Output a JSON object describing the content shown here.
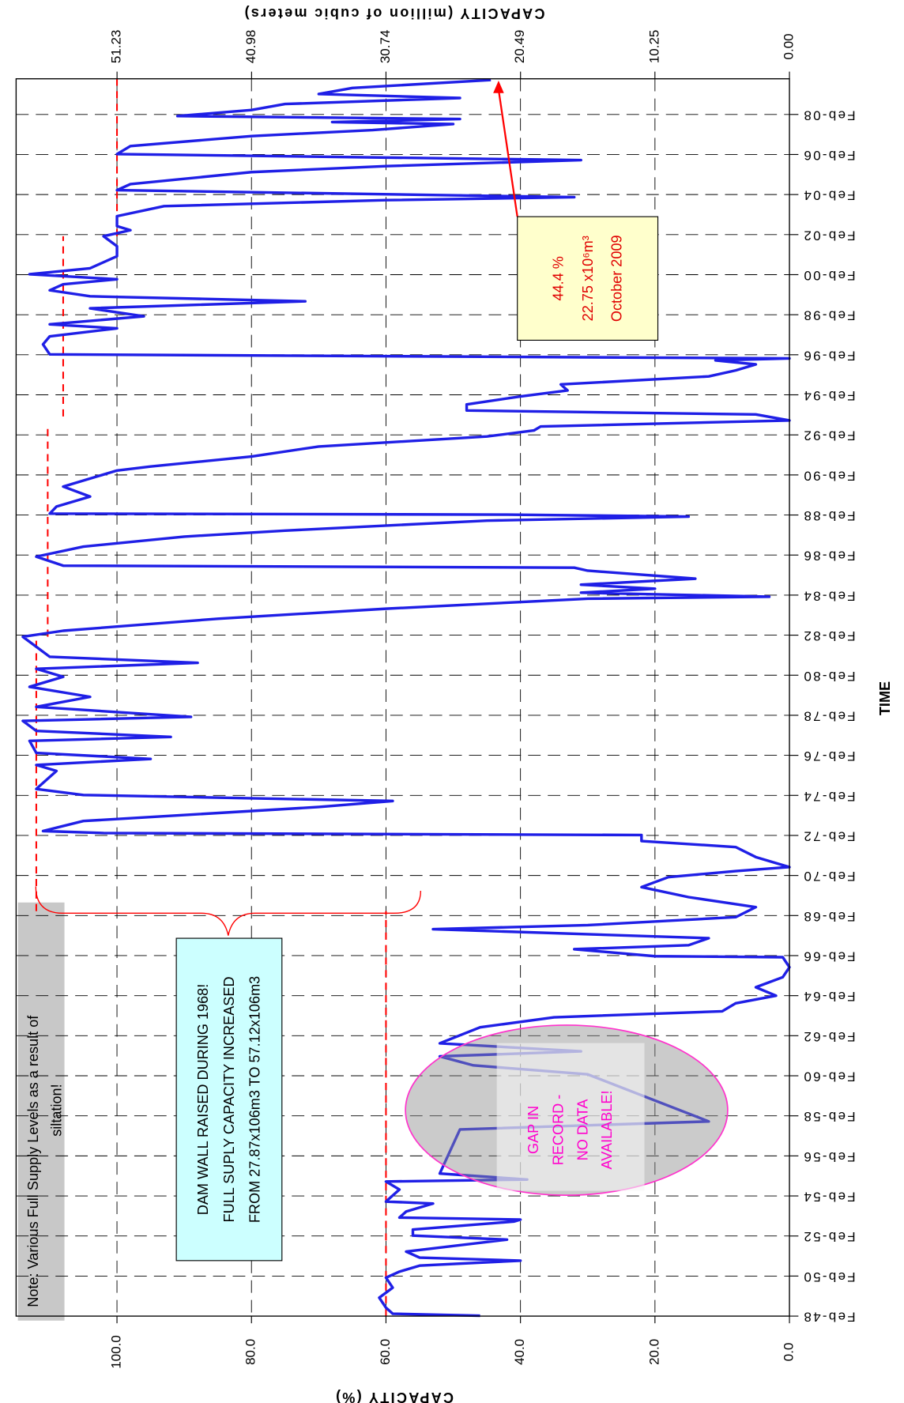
{
  "chart_data": {
    "type": "line",
    "title_x": "TIME",
    "y_axis_title": "CAPACITY (%)",
    "y2_axis_title": "CAPACITY (million of cubic meters)",
    "xlim": [
      1948.08,
      2009.86
    ],
    "ylim": [
      0,
      115
    ],
    "y2lim": [
      0,
      58.92
    ],
    "grid": true,
    "xticks": [
      {
        "value": 1948.08,
        "label": "Feb-48"
      },
      {
        "value": 1950.08,
        "label": "Feb-50"
      },
      {
        "value": 1952.08,
        "label": "Feb-52"
      },
      {
        "value": 1954.08,
        "label": "Feb-54"
      },
      {
        "value": 1956.08,
        "label": "Feb-56"
      },
      {
        "value": 1958.08,
        "label": "Feb-58"
      },
      {
        "value": 1960.08,
        "label": "Feb-60"
      },
      {
        "value": 1962.08,
        "label": "Feb-62"
      },
      {
        "value": 1964.08,
        "label": "Feb-64"
      },
      {
        "value": 1966.08,
        "label": "Feb-66"
      },
      {
        "value": 1968.08,
        "label": "Feb-68"
      },
      {
        "value": 1970.08,
        "label": "Feb-70"
      },
      {
        "value": 1972.08,
        "label": "Feb-72"
      },
      {
        "value": 1974.08,
        "label": "Feb-74"
      },
      {
        "value": 1976.08,
        "label": "Feb-76"
      },
      {
        "value": 1978.08,
        "label": "Feb-78"
      },
      {
        "value": 1980.08,
        "label": "Feb-80"
      },
      {
        "value": 1982.08,
        "label": "Feb-82"
      },
      {
        "value": 1984.08,
        "label": "Feb-84"
      },
      {
        "value": 1986.08,
        "label": "Feb-86"
      },
      {
        "value": 1988.08,
        "label": "Feb-88"
      },
      {
        "value": 1990.08,
        "label": "Feb-90"
      },
      {
        "value": 1992.08,
        "label": "Feb-92"
      },
      {
        "value": 1994.08,
        "label": "Feb-94"
      },
      {
        "value": 1996.08,
        "label": "Feb-96"
      },
      {
        "value": 1998.08,
        "label": "Feb-98"
      },
      {
        "value": 2000.08,
        "label": "Feb-00"
      },
      {
        "value": 2002.08,
        "label": "Feb-02"
      },
      {
        "value": 2004.08,
        "label": "Feb-04"
      },
      {
        "value": 2006.08,
        "label": "Feb-06"
      },
      {
        "value": 2008.08,
        "label": "Feb-08"
      }
    ],
    "yticks": [
      {
        "value": 0,
        "label": "0.0"
      },
      {
        "value": 20,
        "label": "20.0"
      },
      {
        "value": 40,
        "label": "40.0"
      },
      {
        "value": 60,
        "label": "60.0"
      },
      {
        "value": 80,
        "label": "80.0"
      },
      {
        "value": 100,
        "label": "100.0"
      }
    ],
    "y2ticks": [
      {
        "value": 0,
        "label": "0.00"
      },
      10.25,
      20.49,
      30.74,
      40.98,
      51.23
    ],
    "series": [
      {
        "name": "Capacity",
        "color": "#1f1fe6",
        "x": [
          1948.1,
          1948.2,
          1948.5,
          1949.0,
          1949.5,
          1950.0,
          1950.3,
          1950.6,
          1950.85,
          1951.0,
          1951.3,
          1951.9,
          1952.1,
          1952.4,
          1952.8,
          1952.9,
          1953.0,
          1953.3,
          1953.7,
          1953.8,
          1954.1,
          1954.4,
          1954.8,
          1954.9,
          1955.2,
          1957.4,
          1957.8,
          1960.15,
          1960.6,
          1961.05,
          1961.3,
          1961.7,
          1962.5,
          1963.0,
          1963.3,
          1963.7,
          1964.08,
          1964.5,
          1965.0,
          1965.5,
          1966.0,
          1966.05,
          1966.4,
          1966.6,
          1966.95,
          1967.4,
          1967.6,
          1968.0,
          1968.5,
          1969.0,
          1969.5,
          1970.0,
          1970.3,
          1970.5,
          1971.0,
          1971.5,
          1971.8,
          1972.1,
          1972.2,
          1972.3,
          1972.8,
          1973.5,
          1973.8,
          1974.1,
          1974.4,
          1975.3,
          1975.6,
          1975.9,
          1976.2,
          1976.8,
          1977.0,
          1977.3,
          1977.8,
          1978.0,
          1978.5,
          1979.0,
          1979.5,
          1980.0,
          1980.4,
          1980.7,
          1981.0,
          1981.5,
          1982.0,
          1982.3,
          1982.9,
          1983.4,
          1983.9,
          1984.0,
          1984.2,
          1984.4,
          1984.6,
          1984.9,
          1985.3,
          1985.45,
          1985.55,
          1986.0,
          1986.5,
          1987.0,
          1987.3,
          1987.8,
          1988.0,
          1988.1,
          1988.15,
          1988.5,
          1989.0,
          1989.5,
          1990.0,
          1990.3,
          1990.5,
          1991.0,
          1991.5,
          1992.0,
          1992.3,
          1992.5,
          1992.8,
          1993.1,
          1993.3,
          1993.6,
          1994.0,
          1994.3,
          1994.6,
          1995.0,
          1995.3,
          1995.6,
          1995.8,
          1995.9,
          1996.1,
          1996.6,
          1997.0,
          1997.4,
          1997.6,
          1998.0,
          1998.4,
          1998.75,
          1999.0,
          1999.3,
          1999.6,
          1999.85,
          2000.1,
          2000.4,
          2001.0,
          2001.5,
          2002.0,
          2002.3,
          2002.5,
          2003.0,
          2003.5,
          2003.8,
          2003.95,
          2004.3,
          2004.6,
          2005.2,
          2005.5,
          2005.8,
          2006.1,
          2006.5,
          2007.0,
          2007.3,
          2007.6,
          2007.7,
          2007.85,
          2008.0,
          2008.3,
          2008.6,
          2008.9,
          2009.1,
          2009.4,
          2009.8
        ],
        "values": [
          46,
          59,
          60,
          61,
          59,
          60,
          58,
          55,
          40,
          55,
          57,
          42,
          56,
          56,
          41,
          40,
          58,
          57,
          53,
          60,
          59,
          58,
          60,
          39,
          52,
          49,
          12,
          30,
          47,
          52,
          31,
          52,
          46,
          35,
          10,
          8,
          2,
          5,
          1,
          0,
          1,
          20,
          32,
          15,
          12,
          53,
          30,
          8,
          5,
          15,
          22,
          18,
          8,
          0,
          5,
          8,
          22,
          22,
          102,
          111,
          105,
          70,
          59,
          105,
          112,
          109,
          112,
          95,
          112,
          113,
          92,
          112,
          114,
          89,
          112,
          104,
          113,
          108,
          112,
          88,
          110,
          112,
          114,
          108,
          85,
          60,
          30,
          3,
          31,
          20,
          31,
          14,
          30,
          32,
          108,
          112,
          105,
          90,
          75,
          45,
          15,
          42,
          110,
          109,
          104,
          108,
          103,
          100,
          95,
          80,
          70,
          45,
          38,
          37,
          0,
          5,
          48,
          48,
          40,
          33,
          34,
          12,
          8,
          5,
          11,
          0,
          110,
          111,
          110,
          100,
          110,
          96,
          104,
          72,
          104,
          110,
          108,
          100,
          113,
          104,
          100,
          100,
          102,
          98,
          100,
          100,
          93,
          60,
          32,
          100,
          98,
          80,
          60,
          31,
          100,
          98,
          80,
          62,
          50,
          68,
          49,
          91,
          80,
          75,
          49,
          70,
          65,
          44.4
        ]
      }
    ],
    "reference_color": "#ff0000",
    "reference_lines": [
      {
        "x": [
          1948.1,
          1968.3
        ],
        "value": 60
      },
      {
        "x": [
          1968.3,
          1982.0
        ],
        "value": 112
      },
      {
        "x": [
          1982.0,
          1992.4
        ],
        "value": 110.3
      },
      {
        "x": [
          1993.0,
          2002.0
        ],
        "value": 108
      },
      {
        "x": [
          2002.0,
          2009.86
        ],
        "value": 100
      }
    ],
    "annotations": {
      "note": [
        "Note:  Various Full Supply Levels as a result of",
        "siltation!"
      ],
      "dam": [
        "DAM WALL RAISED DURING 1968!",
        "FULL SUPLY CAPACITY INCREASED",
        "FROM 27.87x106m3 TO 57.12x106m3"
      ],
      "gap": [
        "GAP IN",
        "RECORD -",
        "NO DATA",
        "AVAILABLE!"
      ],
      "current": [
        "44.4 %",
        "22.75 x10⁶m³",
        "October 2009"
      ]
    }
  }
}
